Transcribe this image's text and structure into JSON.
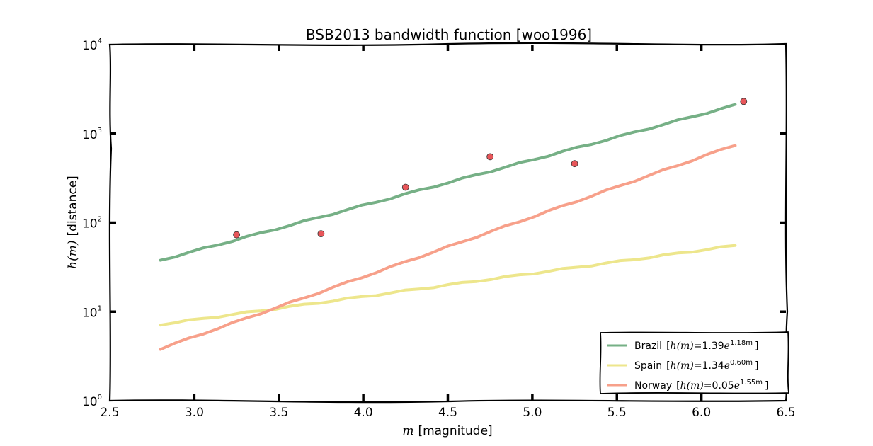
{
  "chart_data": {
    "type": "line",
    "title": "BSB2013 bandwidth function [woo1996]",
    "xlabel": {
      "var": "m",
      "rest": "[magnitude]"
    },
    "ylabel": {
      "var": "h(m)",
      "rest": "[distance]"
    },
    "xlim": [
      2.5,
      6.5
    ],
    "ylim": [
      1,
      10000
    ],
    "yscale": "log",
    "x_ticks": [
      "2.5",
      "3.0",
      "3.5",
      "4.0",
      "4.5",
      "5.0",
      "5.5",
      "6.0",
      "6.5"
    ],
    "y_ticks": [
      {
        "base": "10",
        "exp": "0"
      },
      {
        "base": "10",
        "exp": "1"
      },
      {
        "base": "10",
        "exp": "2"
      },
      {
        "base": "10",
        "exp": "3"
      },
      {
        "base": "10",
        "exp": "4"
      }
    ],
    "grid": false,
    "legend_position": "bottom-right",
    "series": [
      {
        "name": "Brazil",
        "formula": {
          "lhs": "h(m)",
          "coef": "1.39",
          "exp": "1.18m"
        },
        "color": "#76b086",
        "a": 1.39,
        "b": 1.18,
        "x": [
          2.8,
          6.2
        ]
      },
      {
        "name": "Spain",
        "formula": {
          "lhs": "h(m)",
          "coef": "1.34",
          "exp": "0.60m"
        },
        "color": "#ede68c",
        "a": 1.34,
        "b": 0.6,
        "x": [
          2.8,
          6.2
        ]
      },
      {
        "name": "Norway",
        "formula": {
          "lhs": "h(m)",
          "coef": "0.05",
          "exp": "1.55m"
        },
        "color": "#f7a08a",
        "a": 0.05,
        "b": 1.55,
        "x": [
          2.8,
          6.2
        ]
      }
    ],
    "points": {
      "color": "#e8565a",
      "x": [
        3.25,
        3.75,
        4.25,
        4.75,
        5.25,
        6.25
      ],
      "y": [
        73,
        75,
        250,
        550,
        460,
        2300
      ]
    }
  }
}
